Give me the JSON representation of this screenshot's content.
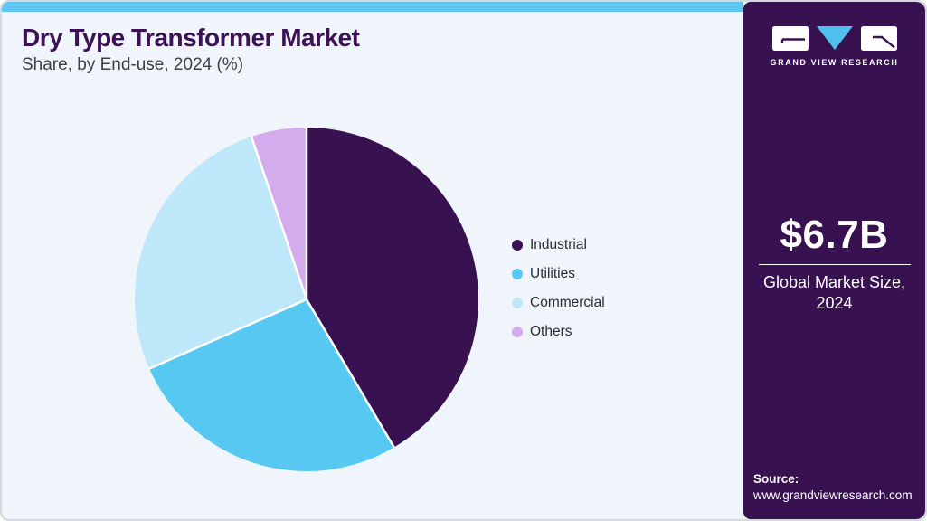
{
  "header": {
    "title": "Dry Type Transformer Market",
    "subtitle": "Share, by End-use, 2024 (%)"
  },
  "chart_data": {
    "type": "pie",
    "title": "Dry Type Transformer Market Share, by End-use, 2024 (%)",
    "categories": [
      "Industrial",
      "Utilities",
      "Commercial",
      "Others"
    ],
    "values": [
      41.5,
      26.9,
      26.4,
      5.2
    ],
    "unit": "%",
    "colors": [
      "#371150",
      "#56c8f2",
      "#bfe7fa",
      "#d4abec"
    ],
    "start_angle": "top",
    "direction": "clockwise",
    "legend_position": "right",
    "slice_separator_color": "#ffffff"
  },
  "sidebar": {
    "logo_text": "GRAND VIEW RESEARCH",
    "market_size_value": "$6.7B",
    "market_size_label": "Global Market Size, 2024",
    "source_label": "Source:",
    "source_url": "www.grandviewresearch.com"
  },
  "colors": {
    "accent_bar": "#5ec6f1",
    "sidebar_bg": "#371150",
    "card_bg": "#eff5fa",
    "title_color": "#3b1253",
    "logo_triangle": "#4fc0ee"
  }
}
